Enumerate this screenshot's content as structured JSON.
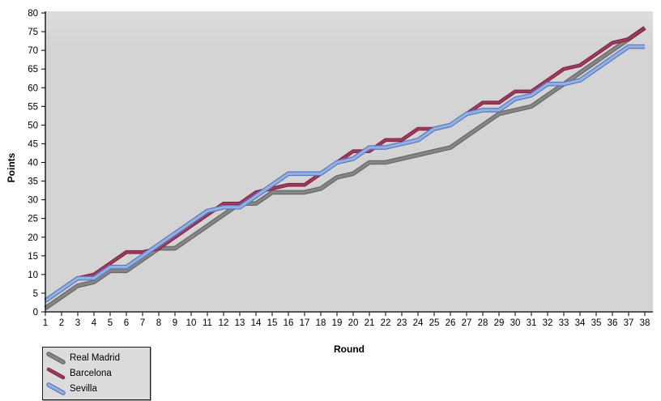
{
  "chart_data": {
    "type": "line",
    "title": "",
    "xlabel": "Round",
    "ylabel": "Points",
    "xlim": [
      1,
      38
    ],
    "ylim": [
      0,
      80
    ],
    "grid": false,
    "legend_position": "bottom-left",
    "plot_background": "#d4d4d4",
    "plot_background_top": "#dddddd",
    "axis_color": "#000000",
    "x": [
      1,
      2,
      3,
      4,
      5,
      6,
      7,
      8,
      9,
      10,
      11,
      12,
      13,
      14,
      15,
      16,
      17,
      18,
      19,
      20,
      21,
      22,
      23,
      24,
      25,
      26,
      27,
      28,
      29,
      30,
      31,
      32,
      33,
      34,
      35,
      36,
      37,
      38
    ],
    "yticks": [
      0,
      5,
      10,
      15,
      20,
      25,
      30,
      35,
      40,
      45,
      50,
      55,
      60,
      65,
      70,
      75,
      80
    ],
    "series": [
      {
        "name": "Real Madrid",
        "color": "#858585",
        "edge_color": "#696969",
        "width": 3.2,
        "edge_width": 5.6,
        "values": [
          1,
          4,
          7,
          8,
          11,
          11,
          14,
          17,
          17,
          20,
          23,
          26,
          29,
          29,
          32,
          32,
          32,
          33,
          36,
          37,
          40,
          40,
          41,
          42,
          43,
          44,
          47,
          50,
          53,
          54,
          55,
          58,
          61,
          64,
          67,
          70,
          73,
          76
        ]
      },
      {
        "name": "Barcelona",
        "color": "#a03a60",
        "edge_color": "#7e2646",
        "width": 2.4,
        "edge_width": 4.6,
        "values": [
          3,
          6,
          9,
          10,
          13,
          16,
          16,
          17,
          20,
          23,
          26,
          29,
          29,
          32,
          33,
          34,
          34,
          37,
          40,
          43,
          43,
          46,
          46,
          49,
          49,
          50,
          53,
          56,
          56,
          59,
          59,
          62,
          65,
          66,
          69,
          72,
          73,
          76
        ]
      },
      {
        "name": "Sevilla",
        "color": "#8fb2e1",
        "edge_color": "#5d77be",
        "width": 3.2,
        "edge_width": 5.6,
        "values": [
          3,
          6,
          9,
          9,
          12,
          12,
          15,
          18,
          21,
          24,
          27,
          28,
          28,
          31,
          34,
          37,
          37,
          37,
          40,
          41,
          44,
          44,
          45,
          46,
          49,
          50,
          53,
          54,
          54,
          57,
          58,
          61,
          61,
          62,
          65,
          68,
          71,
          71
        ]
      }
    ]
  }
}
